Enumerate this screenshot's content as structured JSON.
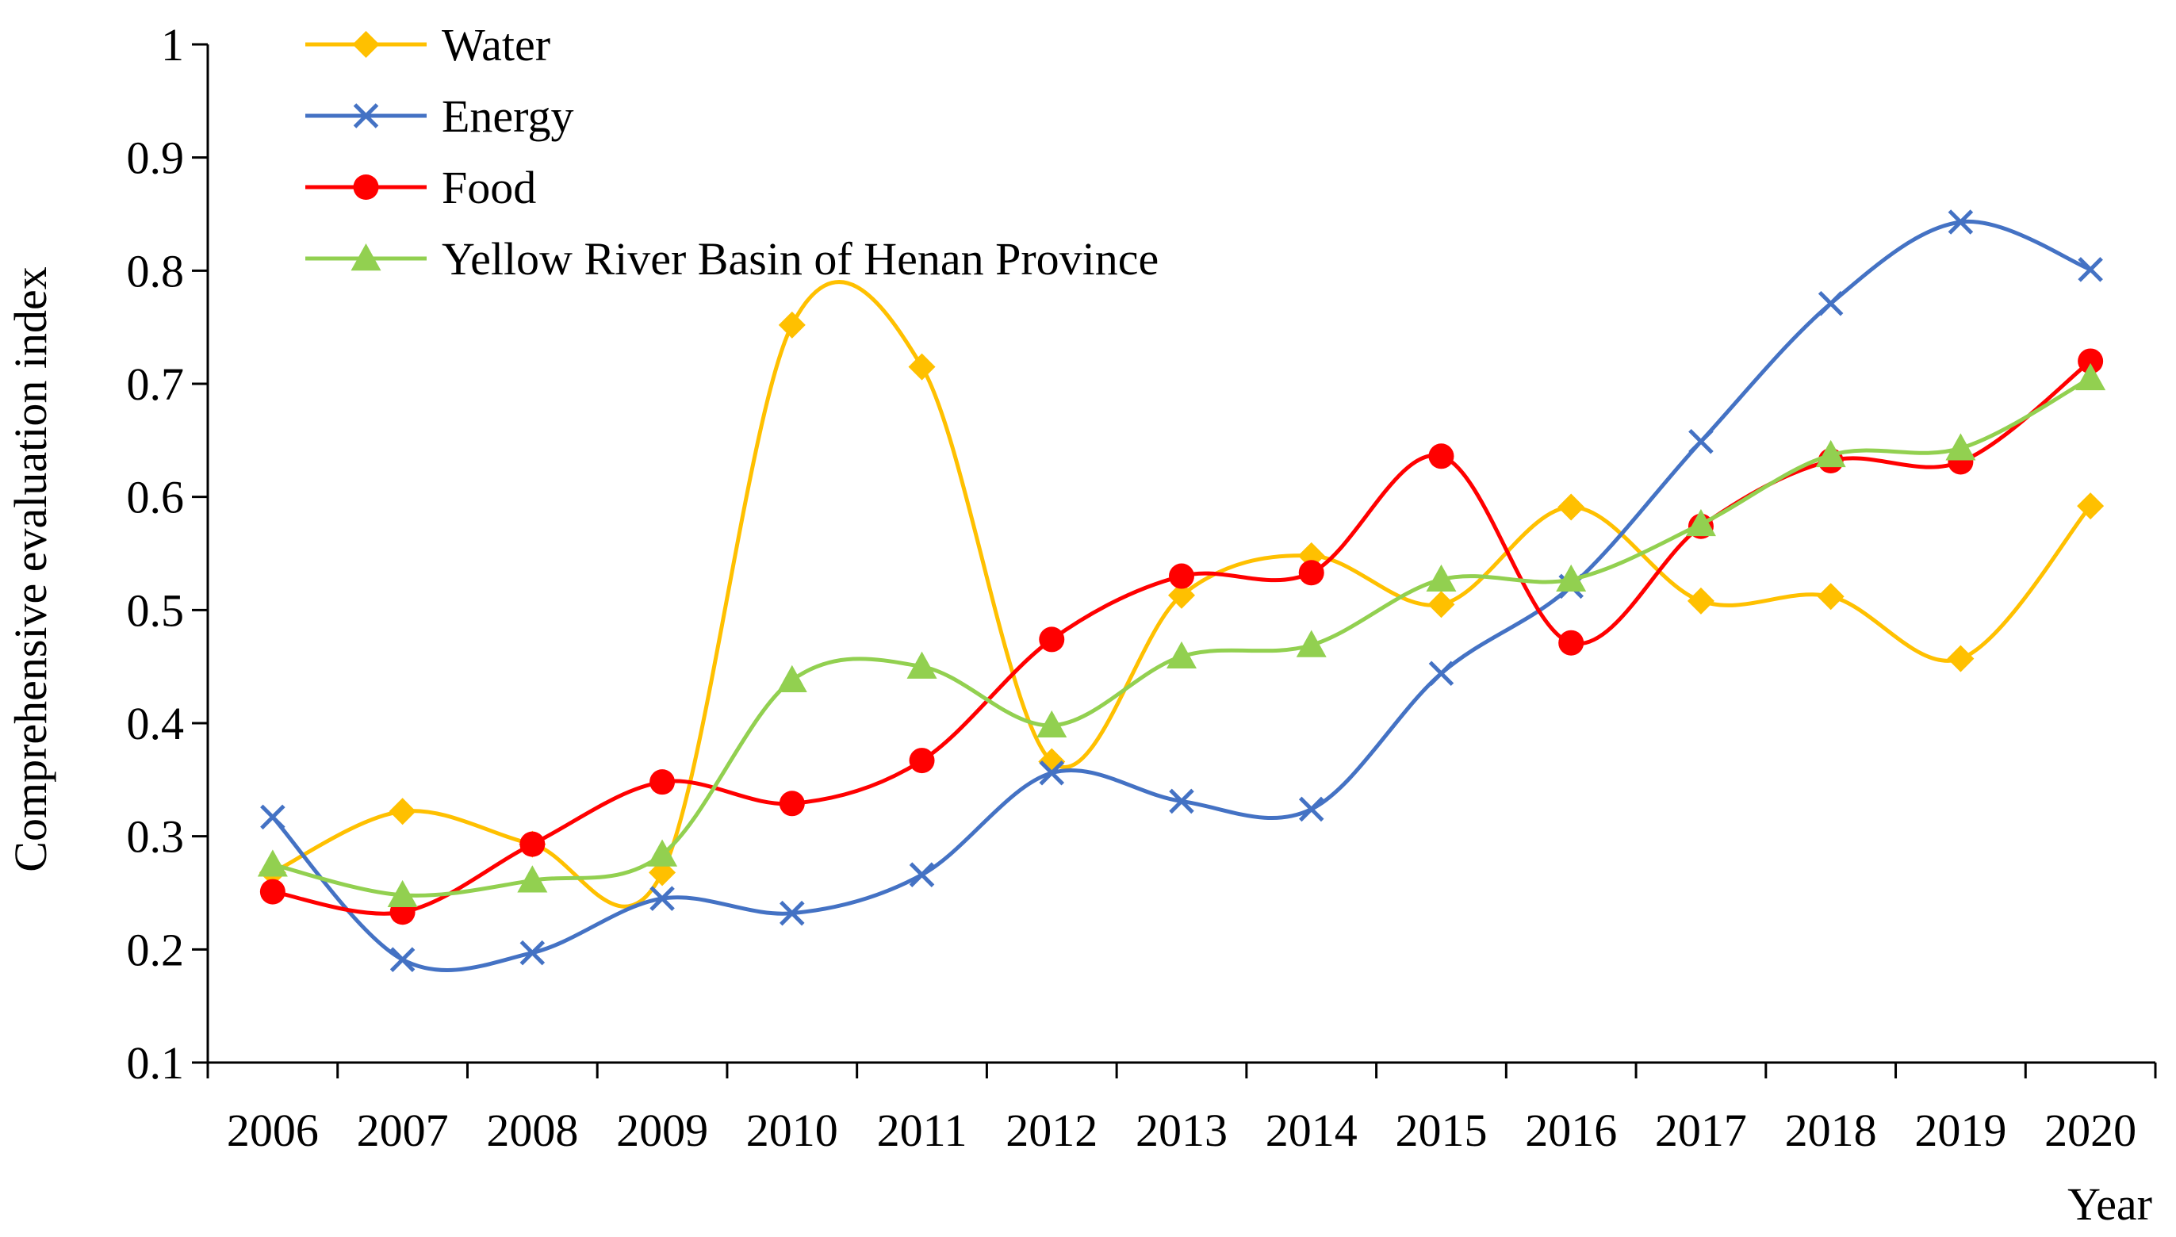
{
  "chart_data": {
    "type": "line",
    "title": "",
    "xlabel": "Year",
    "ylabel": "Comprehensive evaluation index",
    "ylim": [
      0.1,
      1
    ],
    "yticks": [
      "0.1",
      "0.2",
      "0.3",
      "0.4",
      "0.5",
      "0.6",
      "0.7",
      "0.8",
      "0.9",
      "1"
    ],
    "categories": [
      "2006",
      "2007",
      "2008",
      "2009",
      "2010",
      "2011",
      "2012",
      "2013",
      "2014",
      "2015",
      "2016",
      "2017",
      "2018",
      "2019",
      "2020"
    ],
    "grid": false,
    "legend_position": "top-left",
    "smooth": true,
    "series": [
      {
        "name": "Water",
        "color": "#FFC000",
        "marker": "diamond",
        "values": [
          0.268,
          0.322,
          0.293,
          0.268,
          0.752,
          0.715,
          0.366,
          0.513,
          0.548,
          0.505,
          0.591,
          0.508,
          0.512,
          0.457,
          0.592
        ]
      },
      {
        "name": "Energy",
        "color": "#4472C4",
        "marker": "x",
        "values": [
          0.317,
          0.191,
          0.197,
          0.245,
          0.232,
          0.266,
          0.356,
          0.331,
          0.324,
          0.444,
          0.521,
          0.649,
          0.771,
          0.843,
          0.801
        ]
      },
      {
        "name": "Food",
        "color": "#FF0000",
        "marker": "circle",
        "values": [
          0.251,
          0.233,
          0.293,
          0.348,
          0.329,
          0.367,
          0.474,
          0.53,
          0.533,
          0.636,
          0.471,
          0.574,
          0.632,
          0.631,
          0.72
        ]
      },
      {
        "name": "Yellow River Basin of Henan Province",
        "color": "#92D050",
        "marker": "triangle",
        "values": [
          0.275,
          0.248,
          0.261,
          0.284,
          0.438,
          0.45,
          0.398,
          0.459,
          0.469,
          0.527,
          0.527,
          0.576,
          0.637,
          0.643,
          0.705
        ]
      }
    ]
  }
}
